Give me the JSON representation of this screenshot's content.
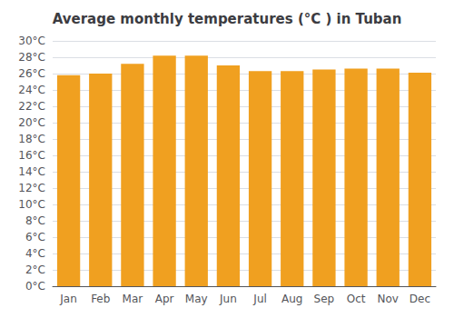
{
  "chart_data": {
    "type": "bar",
    "title": "Average monthly temperatures (°C ) in Tuban",
    "categories": [
      "Jan",
      "Feb",
      "Mar",
      "Apr",
      "May",
      "Jun",
      "Jul",
      "Aug",
      "Sep",
      "Oct",
      "Nov",
      "Dec"
    ],
    "values": [
      25.8,
      26.0,
      27.2,
      28.2,
      28.2,
      27.0,
      26.3,
      26.3,
      26.5,
      26.6,
      26.6,
      26.1
    ],
    "color": "#F0A020",
    "ylim": [
      0,
      30
    ],
    "yticks": [
      {
        "value": 0,
        "label": "0°C"
      },
      {
        "value": 2,
        "label": "2°C"
      },
      {
        "value": 4,
        "label": "4°C"
      },
      {
        "value": 6,
        "label": "6°C"
      },
      {
        "value": 8,
        "label": "8°C"
      },
      {
        "value": 10,
        "label": "10°C"
      },
      {
        "value": 12,
        "label": "12°C"
      },
      {
        "value": 14,
        "label": "14°C"
      },
      {
        "value": 16,
        "label": "16°C"
      },
      {
        "value": 18,
        "label": "18°C"
      },
      {
        "value": 20,
        "label": "20°C"
      },
      {
        "value": 22,
        "label": "22°C"
      },
      {
        "value": 24,
        "label": "24°C"
      },
      {
        "value": 26,
        "label": "26°C"
      },
      {
        "value": 28,
        "label": "28°C"
      },
      {
        "value": 30,
        "label": "30°C"
      }
    ],
    "grid": true
  }
}
